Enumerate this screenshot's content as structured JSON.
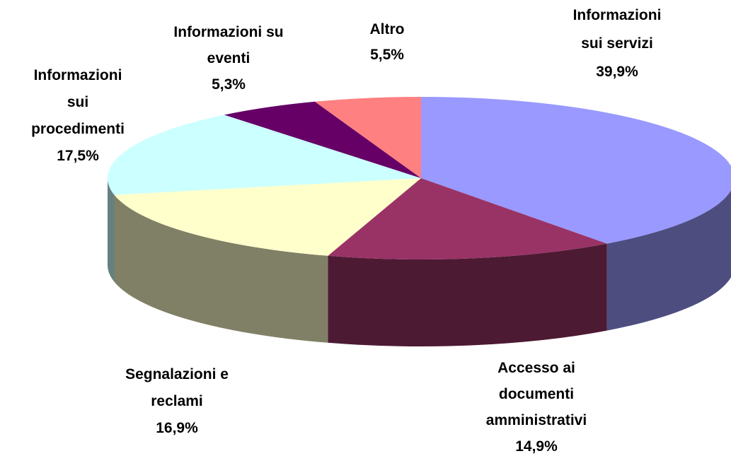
{
  "chart_data": {
    "type": "pie",
    "categories": [
      "Informazioni sui servizi",
      "Accesso ai documenti amministrativi",
      "Segnalazioni e reclami",
      "Informazioni sui procedimenti",
      "Informazioni su eventi",
      "Altro"
    ],
    "values": [
      39.9,
      14.9,
      16.9,
      17.5,
      5.3,
      5.5
    ],
    "value_labels": [
      "39,9%",
      "14,9%",
      "16,9%",
      "17,5%",
      "5,3%",
      "5,5%"
    ],
    "colors": [
      "#9999ff",
      "#993366",
      "#ffffcc",
      "#ccffff",
      "#660066",
      "#ff8080"
    ]
  }
}
